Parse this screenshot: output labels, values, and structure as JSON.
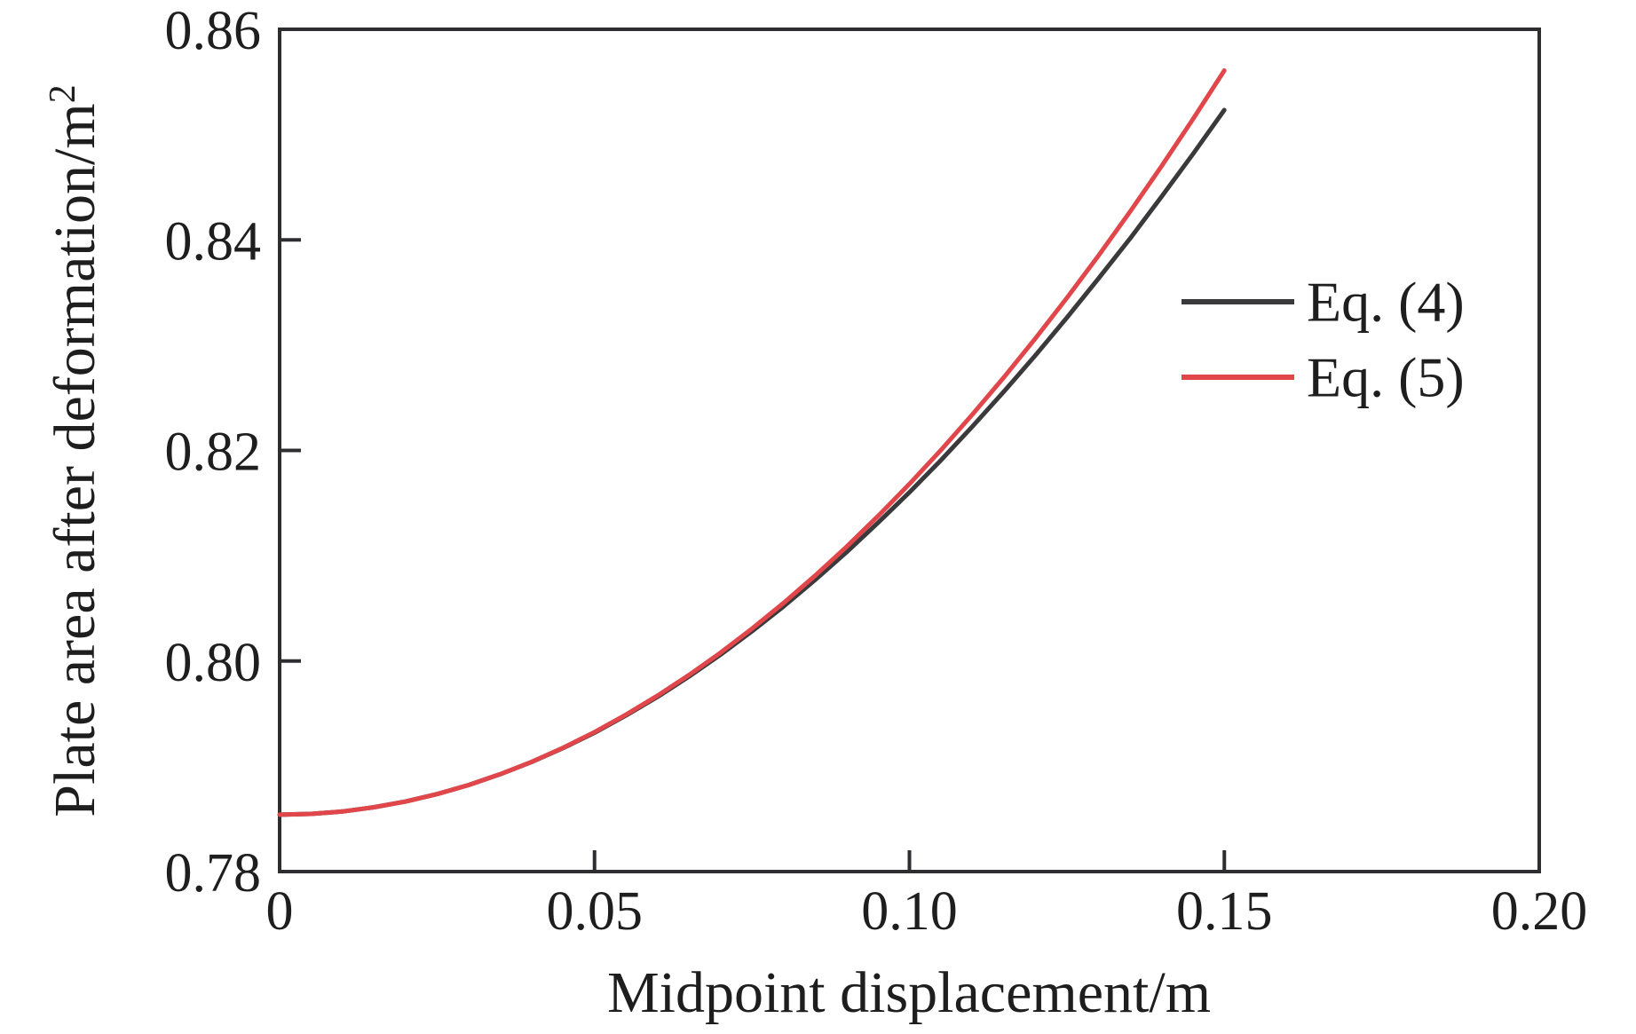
{
  "colors": {
    "background": "#ffffff",
    "axis": "#2e2e30",
    "text": "#1e1e1f",
    "eq4_line": "#3a3a3c",
    "eq5_line": "#e1464b"
  },
  "chart_data": {
    "type": "line",
    "title": "",
    "xlabel": "Midpoint displacement/m",
    "ylabel_base": "Plate area after deformation/m",
    "ylabel_superscript": "2",
    "xlim": [
      0,
      0.2
    ],
    "ylim": [
      0.78,
      0.86
    ],
    "grid": false,
    "legend_position": "inside upper right",
    "x_tick_labels": [
      "0",
      "0.05",
      "0.10",
      "0.15",
      "0.20"
    ],
    "x_tick_values": [
      0,
      0.05,
      0.1,
      0.15,
      0.2
    ],
    "x_tick_marks": [
      0.05,
      0.1,
      0.15
    ],
    "y_tick_labels": [
      "0.78",
      "0.80",
      "0.82",
      "0.84",
      "0.86"
    ],
    "y_tick_values": [
      0.78,
      0.8,
      0.82,
      0.84,
      0.86
    ],
    "y_tick_marks": [
      0.8,
      0.82,
      0.84
    ],
    "x": [
      0,
      0.005,
      0.01,
      0.015,
      0.02,
      0.025,
      0.03,
      0.035,
      0.04,
      0.045,
      0.05,
      0.055,
      0.06,
      0.065,
      0.07,
      0.075,
      0.08,
      0.085,
      0.09,
      0.095,
      0.1,
      0.105,
      0.11,
      0.115,
      0.12,
      0.125,
      0.13,
      0.135,
      0.14,
      0.145,
      0.15
    ],
    "series": [
      {
        "name": "Eq. (4)",
        "color": "#3a3a3c",
        "values": [
          0.7854,
          0.78548,
          0.78571,
          0.78611,
          0.78665,
          0.78736,
          0.78822,
          0.78924,
          0.7904,
          0.79173,
          0.79319,
          0.79483,
          0.7966,
          0.79853,
          0.8006,
          0.80282,
          0.80517,
          0.80769,
          0.81032,
          0.81312,
          0.81602,
          0.81907,
          0.82227,
          0.82559,
          0.82903,
          0.83261,
          0.83631,
          0.8401,
          0.84408,
          0.84814,
          0.85233
        ]
      },
      {
        "name": "Eq. (5)",
        "color": "#e1464b",
        "values": [
          0.7854,
          0.78548,
          0.78571,
          0.78611,
          0.78665,
          0.78736,
          0.78822,
          0.78925,
          0.79042,
          0.79176,
          0.79325,
          0.7949,
          0.79671,
          0.79867,
          0.80079,
          0.80307,
          0.8055,
          0.8081,
          0.81084,
          0.81375,
          0.81681,
          0.82003,
          0.82341,
          0.82695,
          0.83064,
          0.83449,
          0.83849,
          0.84265,
          0.84697,
          0.85145,
          0.85608
        ]
      }
    ]
  }
}
